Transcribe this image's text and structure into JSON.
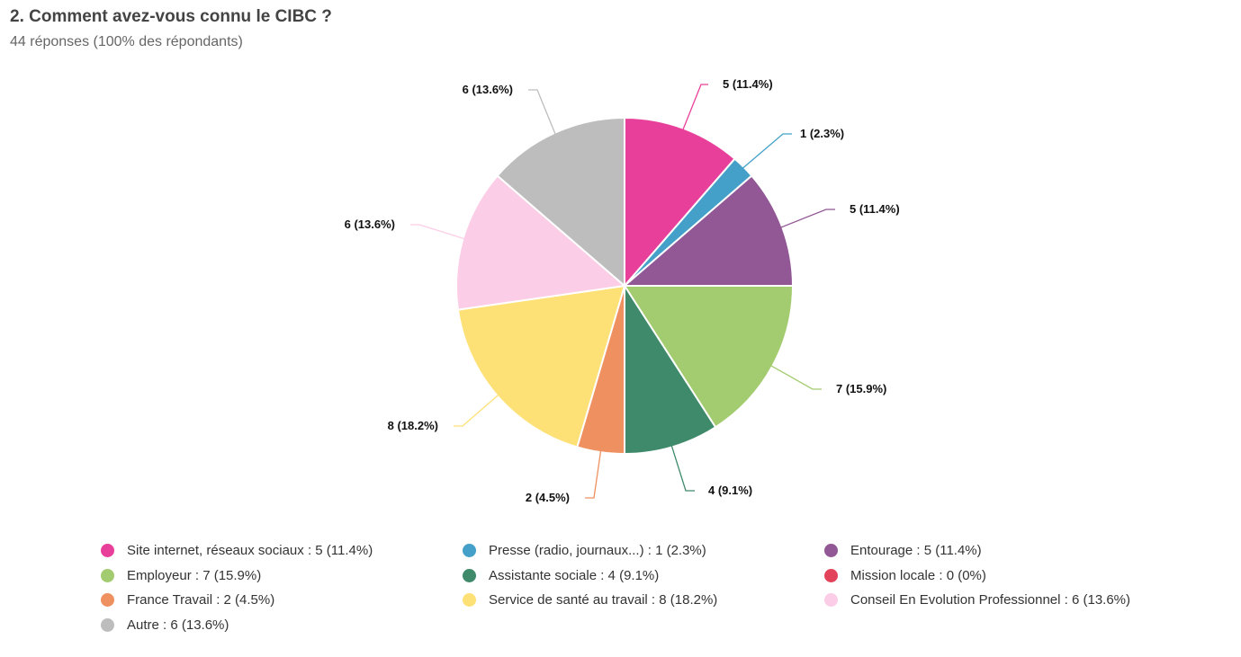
{
  "header": {
    "title": "2. Comment avez-vous connu le CIBC ?",
    "subtitle": "44 réponses (100% des répondants)"
  },
  "chart_data": {
    "type": "pie",
    "total": 44,
    "slices": [
      {
        "name": "Site internet, réseaux sociaux",
        "value": 5,
        "percent": "11.4%",
        "color": "#E8409A",
        "label": "5 (11.4%)",
        "legend": "Site internet, réseaux sociaux : 5 (11.4%)"
      },
      {
        "name": "Presse (radio, journaux...)",
        "value": 1,
        "percent": "2.3%",
        "color": "#44A0C8",
        "label": "1 (2.3%)",
        "legend": "Presse (radio, journaux...) : 1 (2.3%)"
      },
      {
        "name": "Entourage",
        "value": 5,
        "percent": "11.4%",
        "color": "#925795",
        "label": "5 (11.4%)",
        "legend": "Entourage : 5 (11.4%)"
      },
      {
        "name": "Employeur",
        "value": 7,
        "percent": "15.9%",
        "color": "#A3CB6F",
        "label": "7 (15.9%)",
        "legend": "Employeur : 7 (15.9%)"
      },
      {
        "name": "Assistante sociale",
        "value": 4,
        "percent": "9.1%",
        "color": "#3E8A6A",
        "label": "4 (9.1%)",
        "legend": "Assistante sociale : 4 (9.1%)"
      },
      {
        "name": "Mission locale",
        "value": 0,
        "percent": "0%",
        "color": "#E3435A",
        "label": "",
        "legend": "Mission locale : 0 (0%)"
      },
      {
        "name": "France Travail",
        "value": 2,
        "percent": "4.5%",
        "color": "#EE9060",
        "label": "2 (4.5%)",
        "legend": "France Travail : 2 (4.5%)"
      },
      {
        "name": "Service de santé au travail",
        "value": 8,
        "percent": "18.2%",
        "color": "#FDE176",
        "label": "8 (18.2%)",
        "legend": "Service de santé au travail : 8 (18.2%)"
      },
      {
        "name": "Conseil En Evolution Professionnel",
        "value": 6,
        "percent": "13.6%",
        "color": "#FCCDE6",
        "label": "6 (13.6%)",
        "legend": "Conseil En Evolution Professionnel : 6 (13.6%)"
      },
      {
        "name": "Autre",
        "value": 6,
        "percent": "13.6%",
        "color": "#BDBDBD",
        "label": "6 (13.6%)",
        "legend": "Autre : 6 (13.6%)"
      }
    ],
    "legend_position": "bottom"
  }
}
